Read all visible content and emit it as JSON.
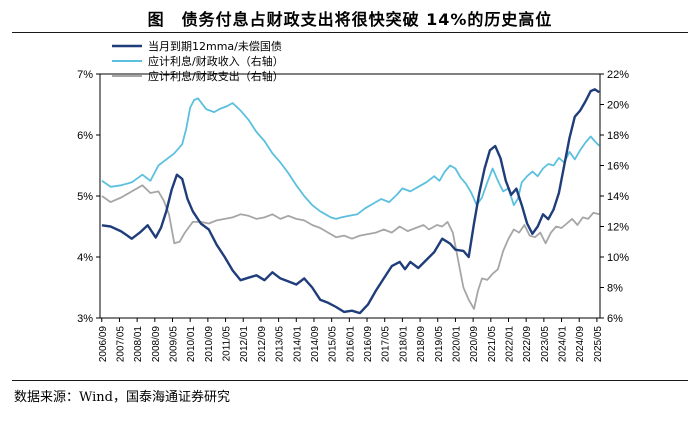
{
  "header": {
    "title": "图　债务付息占财政支出将很快突破 14%的历史高位"
  },
  "footer": {
    "source": "数据来源：Wind，国泰海通证券研究"
  },
  "colors": {
    "navy": "#1f3d7a",
    "lightblue": "#5bc0de",
    "gray": "#a6a6a6"
  },
  "chart_data": {
    "type": "line",
    "title": "债务付息占财政支出将很快突破 14%的历史高位",
    "x_tick_labels": [
      "2006/09",
      "2007/05",
      "2008/01",
      "2008/09",
      "2009/05",
      "2010/01",
      "2010/09",
      "2011/05",
      "2012/01",
      "2012/09",
      "2013/05",
      "2014/01",
      "2014/09",
      "2015/05",
      "2016/01",
      "2016/09",
      "2017/05",
      "2018/01",
      "2018/09",
      "2019/05",
      "2020/01",
      "2020/09",
      "2021/05",
      "2022/01",
      "2022/09",
      "2023/05",
      "2024/01",
      "2024/09",
      "2025/05"
    ],
    "y_left": {
      "min": 3,
      "max": 7,
      "ticks": [
        "3%",
        "4%",
        "5%",
        "6%",
        "7%"
      ]
    },
    "y_right": {
      "min": 6,
      "max": 22,
      "ticks": [
        "6%",
        "8%",
        "10%",
        "12%",
        "14%",
        "16%",
        "18%",
        "20%",
        "22%"
      ]
    },
    "legend_placement": "top-left",
    "series": [
      {
        "name": "当月到期12mma/未偿国债",
        "axis": "left",
        "points": [
          [
            2006.67,
            4.52
          ],
          [
            2007.0,
            4.5
          ],
          [
            2007.4,
            4.42
          ],
          [
            2007.8,
            4.3
          ],
          [
            2008.1,
            4.4
          ],
          [
            2008.4,
            4.52
          ],
          [
            2008.7,
            4.32
          ],
          [
            2008.9,
            4.48
          ],
          [
            2009.1,
            4.75
          ],
          [
            2009.3,
            5.1
          ],
          [
            2009.5,
            5.35
          ],
          [
            2009.7,
            5.28
          ],
          [
            2009.9,
            4.95
          ],
          [
            2010.1,
            4.75
          ],
          [
            2010.4,
            4.55
          ],
          [
            2010.7,
            4.45
          ],
          [
            2011.0,
            4.2
          ],
          [
            2011.3,
            4.0
          ],
          [
            2011.6,
            3.78
          ],
          [
            2011.9,
            3.62
          ],
          [
            2012.2,
            3.66
          ],
          [
            2012.5,
            3.7
          ],
          [
            2012.8,
            3.62
          ],
          [
            2013.1,
            3.75
          ],
          [
            2013.4,
            3.65
          ],
          [
            2013.7,
            3.6
          ],
          [
            2014.0,
            3.55
          ],
          [
            2014.3,
            3.65
          ],
          [
            2014.6,
            3.5
          ],
          [
            2014.9,
            3.3
          ],
          [
            2015.2,
            3.25
          ],
          [
            2015.5,
            3.18
          ],
          [
            2015.8,
            3.1
          ],
          [
            2016.1,
            3.12
          ],
          [
            2016.4,
            3.08
          ],
          [
            2016.7,
            3.22
          ],
          [
            2017.0,
            3.45
          ],
          [
            2017.3,
            3.65
          ],
          [
            2017.6,
            3.85
          ],
          [
            2017.9,
            3.92
          ],
          [
            2018.1,
            3.8
          ],
          [
            2018.3,
            3.92
          ],
          [
            2018.6,
            3.82
          ],
          [
            2018.9,
            3.95
          ],
          [
            2019.2,
            4.08
          ],
          [
            2019.5,
            4.3
          ],
          [
            2019.8,
            4.22
          ],
          [
            2020.0,
            4.12
          ],
          [
            2020.3,
            4.1
          ],
          [
            2020.5,
            4.0
          ],
          [
            2020.7,
            4.55
          ],
          [
            2020.9,
            5.05
          ],
          [
            2021.1,
            5.45
          ],
          [
            2021.3,
            5.75
          ],
          [
            2021.5,
            5.82
          ],
          [
            2021.7,
            5.62
          ],
          [
            2021.9,
            5.25
          ],
          [
            2022.1,
            5.02
          ],
          [
            2022.3,
            5.12
          ],
          [
            2022.5,
            4.85
          ],
          [
            2022.7,
            4.55
          ],
          [
            2022.9,
            4.38
          ],
          [
            2023.1,
            4.5
          ],
          [
            2023.3,
            4.7
          ],
          [
            2023.5,
            4.62
          ],
          [
            2023.7,
            4.78
          ],
          [
            2023.9,
            5.05
          ],
          [
            2024.1,
            5.5
          ],
          [
            2024.3,
            5.95
          ],
          [
            2024.5,
            6.3
          ],
          [
            2024.7,
            6.4
          ],
          [
            2024.9,
            6.55
          ],
          [
            2025.1,
            6.72
          ],
          [
            2025.25,
            6.75
          ],
          [
            2025.42,
            6.7
          ]
        ]
      },
      {
        "name": "应计利息/财政收入（右轴）",
        "axis": "right",
        "points": [
          [
            2006.67,
            15.0
          ],
          [
            2007.0,
            14.6
          ],
          [
            2007.4,
            14.7
          ],
          [
            2007.8,
            14.9
          ],
          [
            2008.2,
            15.4
          ],
          [
            2008.5,
            15.0
          ],
          [
            2008.8,
            16.0
          ],
          [
            2009.1,
            16.4
          ],
          [
            2009.4,
            16.8
          ],
          [
            2009.7,
            17.4
          ],
          [
            2009.85,
            18.4
          ],
          [
            2010.0,
            19.8
          ],
          [
            2010.15,
            20.3
          ],
          [
            2010.3,
            20.4
          ],
          [
            2010.6,
            19.7
          ],
          [
            2010.9,
            19.5
          ],
          [
            2011.1,
            19.7
          ],
          [
            2011.4,
            19.9
          ],
          [
            2011.6,
            20.1
          ],
          [
            2011.9,
            19.6
          ],
          [
            2012.2,
            19.0
          ],
          [
            2012.5,
            18.2
          ],
          [
            2012.8,
            17.6
          ],
          [
            2013.1,
            16.8
          ],
          [
            2013.4,
            16.2
          ],
          [
            2013.7,
            15.5
          ],
          [
            2014.0,
            14.7
          ],
          [
            2014.3,
            14.0
          ],
          [
            2014.6,
            13.4
          ],
          [
            2014.9,
            13.0
          ],
          [
            2015.1,
            12.8
          ],
          [
            2015.3,
            12.6
          ],
          [
            2015.5,
            12.5
          ],
          [
            2015.7,
            12.6
          ],
          [
            2016.0,
            12.7
          ],
          [
            2016.3,
            12.8
          ],
          [
            2016.6,
            13.2
          ],
          [
            2016.9,
            13.5
          ],
          [
            2017.2,
            13.8
          ],
          [
            2017.5,
            13.6
          ],
          [
            2017.8,
            14.1
          ],
          [
            2018.0,
            14.5
          ],
          [
            2018.3,
            14.3
          ],
          [
            2018.6,
            14.6
          ],
          [
            2018.9,
            14.9
          ],
          [
            2019.2,
            15.3
          ],
          [
            2019.4,
            15.0
          ],
          [
            2019.6,
            15.6
          ],
          [
            2019.8,
            16.0
          ],
          [
            2020.0,
            15.8
          ],
          [
            2020.2,
            15.2
          ],
          [
            2020.4,
            14.8
          ],
          [
            2020.6,
            14.2
          ],
          [
            2020.8,
            13.4
          ],
          [
            2021.0,
            13.9
          ],
          [
            2021.2,
            14.9
          ],
          [
            2021.4,
            15.8
          ],
          [
            2021.6,
            15.0
          ],
          [
            2021.8,
            14.3
          ],
          [
            2022.0,
            14.5
          ],
          [
            2022.2,
            13.4
          ],
          [
            2022.35,
            13.8
          ],
          [
            2022.5,
            14.9
          ],
          [
            2022.7,
            15.3
          ],
          [
            2022.9,
            15.6
          ],
          [
            2023.1,
            15.3
          ],
          [
            2023.3,
            15.8
          ],
          [
            2023.5,
            16.1
          ],
          [
            2023.7,
            16.0
          ],
          [
            2023.9,
            16.5
          ],
          [
            2024.1,
            16.2
          ],
          [
            2024.3,
            16.9
          ],
          [
            2024.5,
            16.4
          ],
          [
            2024.7,
            17.0
          ],
          [
            2024.9,
            17.5
          ],
          [
            2025.1,
            17.9
          ],
          [
            2025.25,
            17.6
          ],
          [
            2025.42,
            17.3
          ]
        ]
      },
      {
        "name": "应计利息/财政支出（右轴）",
        "axis": "right",
        "points": [
          [
            2006.67,
            14.0
          ],
          [
            2007.0,
            13.6
          ],
          [
            2007.4,
            13.9
          ],
          [
            2007.8,
            14.3
          ],
          [
            2008.2,
            14.7
          ],
          [
            2008.5,
            14.2
          ],
          [
            2008.8,
            14.3
          ],
          [
            2009.0,
            13.7
          ],
          [
            2009.2,
            12.8
          ],
          [
            2009.4,
            10.9
          ],
          [
            2009.6,
            11.0
          ],
          [
            2009.8,
            11.6
          ],
          [
            2010.1,
            12.3
          ],
          [
            2010.4,
            12.3
          ],
          [
            2010.7,
            12.2
          ],
          [
            2011.0,
            12.4
          ],
          [
            2011.3,
            12.5
          ],
          [
            2011.6,
            12.6
          ],
          [
            2011.9,
            12.8
          ],
          [
            2012.2,
            12.7
          ],
          [
            2012.5,
            12.5
          ],
          [
            2012.8,
            12.6
          ],
          [
            2013.1,
            12.8
          ],
          [
            2013.4,
            12.5
          ],
          [
            2013.7,
            12.7
          ],
          [
            2014.0,
            12.5
          ],
          [
            2014.3,
            12.4
          ],
          [
            2014.6,
            12.1
          ],
          [
            2014.9,
            11.9
          ],
          [
            2015.2,
            11.6
          ],
          [
            2015.5,
            11.3
          ],
          [
            2015.8,
            11.4
          ],
          [
            2016.1,
            11.2
          ],
          [
            2016.4,
            11.4
          ],
          [
            2016.7,
            11.5
          ],
          [
            2017.0,
            11.6
          ],
          [
            2017.3,
            11.8
          ],
          [
            2017.6,
            11.6
          ],
          [
            2017.9,
            12.0
          ],
          [
            2018.2,
            11.7
          ],
          [
            2018.5,
            11.9
          ],
          [
            2018.8,
            12.1
          ],
          [
            2019.0,
            11.8
          ],
          [
            2019.3,
            12.1
          ],
          [
            2019.5,
            12.0
          ],
          [
            2019.7,
            12.3
          ],
          [
            2019.9,
            11.6
          ],
          [
            2020.1,
            9.8
          ],
          [
            2020.3,
            8.0
          ],
          [
            2020.5,
            7.2
          ],
          [
            2020.7,
            6.6
          ],
          [
            2020.85,
            7.8
          ],
          [
            2021.0,
            8.6
          ],
          [
            2021.2,
            8.5
          ],
          [
            2021.4,
            8.9
          ],
          [
            2021.6,
            9.2
          ],
          [
            2021.8,
            10.4
          ],
          [
            2022.0,
            11.2
          ],
          [
            2022.2,
            11.8
          ],
          [
            2022.4,
            11.6
          ],
          [
            2022.6,
            12.1
          ],
          [
            2022.8,
            11.4
          ],
          [
            2023.0,
            11.3
          ],
          [
            2023.2,
            11.6
          ],
          [
            2023.4,
            10.9
          ],
          [
            2023.6,
            11.6
          ],
          [
            2023.8,
            12.0
          ],
          [
            2024.0,
            11.9
          ],
          [
            2024.2,
            12.2
          ],
          [
            2024.4,
            12.5
          ],
          [
            2024.6,
            12.1
          ],
          [
            2024.8,
            12.6
          ],
          [
            2025.0,
            12.5
          ],
          [
            2025.2,
            12.9
          ],
          [
            2025.42,
            12.8
          ]
        ]
      }
    ]
  }
}
